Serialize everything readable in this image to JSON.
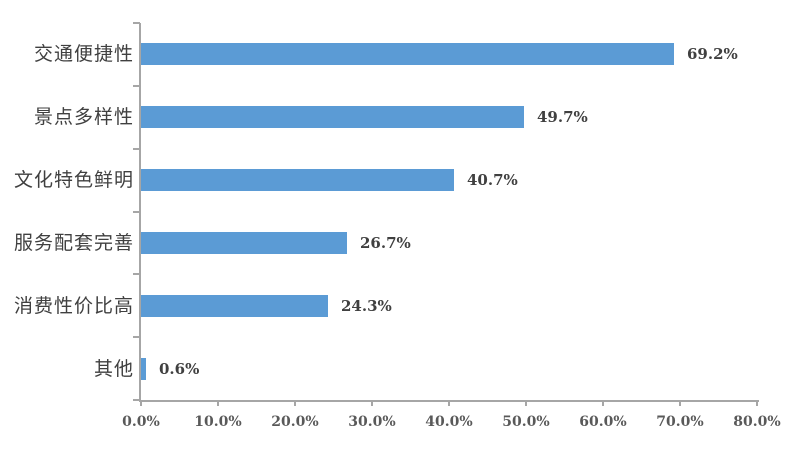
{
  "chart_data": {
    "type": "bar",
    "orientation": "horizontal",
    "title": "",
    "categories": [
      "交通便捷性",
      "景点多样性",
      "文化特色鲜明",
      "服务配套完善",
      "消费性价比高",
      "其他"
    ],
    "values": [
      69.2,
      49.7,
      40.7,
      26.7,
      24.3,
      0.6
    ],
    "value_labels": [
      "69.2%",
      "49.7%",
      "40.7%",
      "26.7%",
      "24.3%",
      "0.6%"
    ],
    "x_ticks": [
      0,
      10,
      20,
      30,
      40,
      50,
      60,
      70,
      80
    ],
    "x_tick_labels": [
      "0.0%",
      "10.0%",
      "20.0%",
      "30.0%",
      "40.0%",
      "50.0%",
      "60.0%",
      "70.0%",
      "80.0%"
    ],
    "xlim": [
      0,
      80
    ],
    "ylabel": "",
    "xlabel": "",
    "grid": false,
    "legend": "none",
    "bar_color": "#5B9BD5",
    "axis_color": "#A6A6A6",
    "value_label_color": "#404040",
    "category_label_color": "#404040",
    "tick_label_color": "#595959",
    "background": "#FFFFFF"
  }
}
